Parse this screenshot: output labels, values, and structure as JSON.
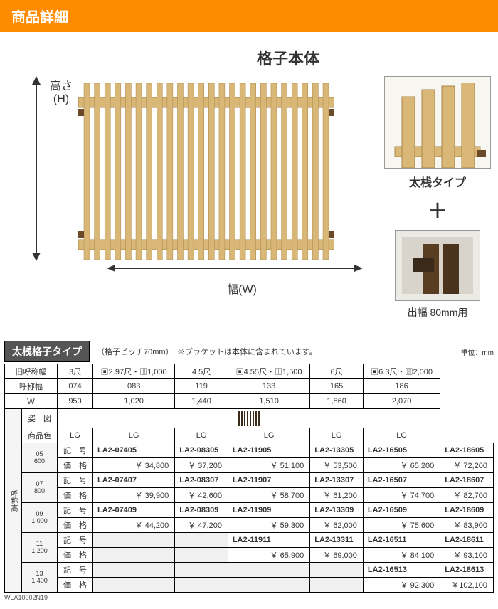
{
  "header": {
    "title": "商品詳細"
  },
  "diagram": {
    "main_title": "格子本体",
    "height_label": "高さ\n(H)",
    "width_label": "幅(W)",
    "side_type_label": "太桟タイプ",
    "plus": "＋",
    "bracket_label": "出幅 80mm用",
    "lattice_color": "#d9b877",
    "lattice_dark": "#a8864a",
    "bracket_color": "#6b4a2a"
  },
  "table": {
    "title": "太桟格子タイプ",
    "note": "（格子ピッチ70mm）　※ブラケットは本体に含まれています。",
    "unit": "単位：mm",
    "header_rows": {
      "old_name": "旧呼称幅",
      "name": "呼称幅",
      "w": "Ｗ",
      "sugata": "姿　図",
      "color": "商品色",
      "code": "記　号",
      "price": "価　格"
    },
    "rowhead_label": "呼称高",
    "columns": [
      {
        "old": "3尺",
        "name": "074",
        "w": "950",
        "color": "LG"
      },
      {
        "old": "▣2.97尺・▥1,000",
        "name": "083",
        "w": "1,020",
        "color": "LG"
      },
      {
        "old": "4.5尺",
        "name": "119",
        "w": "1,440",
        "color": "LG"
      },
      {
        "old": "▣4.55尺・▥1,500",
        "name": "133",
        "w": "1,510",
        "color": "LG"
      },
      {
        "old": "6尺",
        "name": "165",
        "w": "1,860",
        "color": "LG"
      },
      {
        "old": "▣6.3尺・▥2,000",
        "name": "186",
        "w": "2,070",
        "color": "LG"
      }
    ],
    "groups": [
      {
        "h": "05",
        "hmm": "600",
        "rows": [
          {
            "codes": [
              "LA2-07405",
              "LA2-08305",
              "LA2-11905",
              "LA2-13305",
              "LA2-16505",
              "LA2-18605"
            ]
          },
          {
            "prices": [
              "￥ 34,800",
              "￥ 37,200",
              "￥ 51,100",
              "￥ 53,500",
              "￥ 65,200",
              "￥ 72,200"
            ]
          }
        ]
      },
      {
        "h": "07",
        "hmm": "800",
        "rows": [
          {
            "codes": [
              "LA2-07407",
              "LA2-08307",
              "LA2-11907",
              "LA2-13307",
              "LA2-16507",
              "LA2-18607"
            ]
          },
          {
            "prices": [
              "￥ 39,900",
              "￥ 42,600",
              "￥ 58,700",
              "￥ 61,200",
              "￥ 74,700",
              "￥ 82,700"
            ]
          }
        ]
      },
      {
        "h": "09",
        "hmm": "1,000",
        "rows": [
          {
            "codes": [
              "LA2-07409",
              "LA2-08309",
              "LA2-11909",
              "LA2-13309",
              "LA2-16509",
              "LA2-18609"
            ]
          },
          {
            "prices": [
              "￥ 44,200",
              "￥ 47,200",
              "￥ 59,300",
              "￥ 62,000",
              "￥ 75,600",
              "￥ 83,900"
            ]
          }
        ]
      },
      {
        "h": "11",
        "hmm": "1,200",
        "rows": [
          {
            "codes": [
              "",
              "",
              "LA2-11911",
              "LA2-13311",
              "LA2-16511",
              "LA2-18611"
            ]
          },
          {
            "prices": [
              "",
              "",
              "￥ 65,900",
              "￥ 69,000",
              "￥ 84,100",
              "￥ 93,100"
            ]
          }
        ]
      },
      {
        "h": "13",
        "hmm": "1,400",
        "rows": [
          {
            "codes": [
              "",
              "",
              "",
              "",
              "LA2-16513",
              "LA2-18613"
            ]
          },
          {
            "prices": [
              "",
              "",
              "",
              "",
              "￥ 92,300",
              "￥102,100"
            ]
          }
        ]
      }
    ]
  },
  "footer_code": "WLA10002N19"
}
